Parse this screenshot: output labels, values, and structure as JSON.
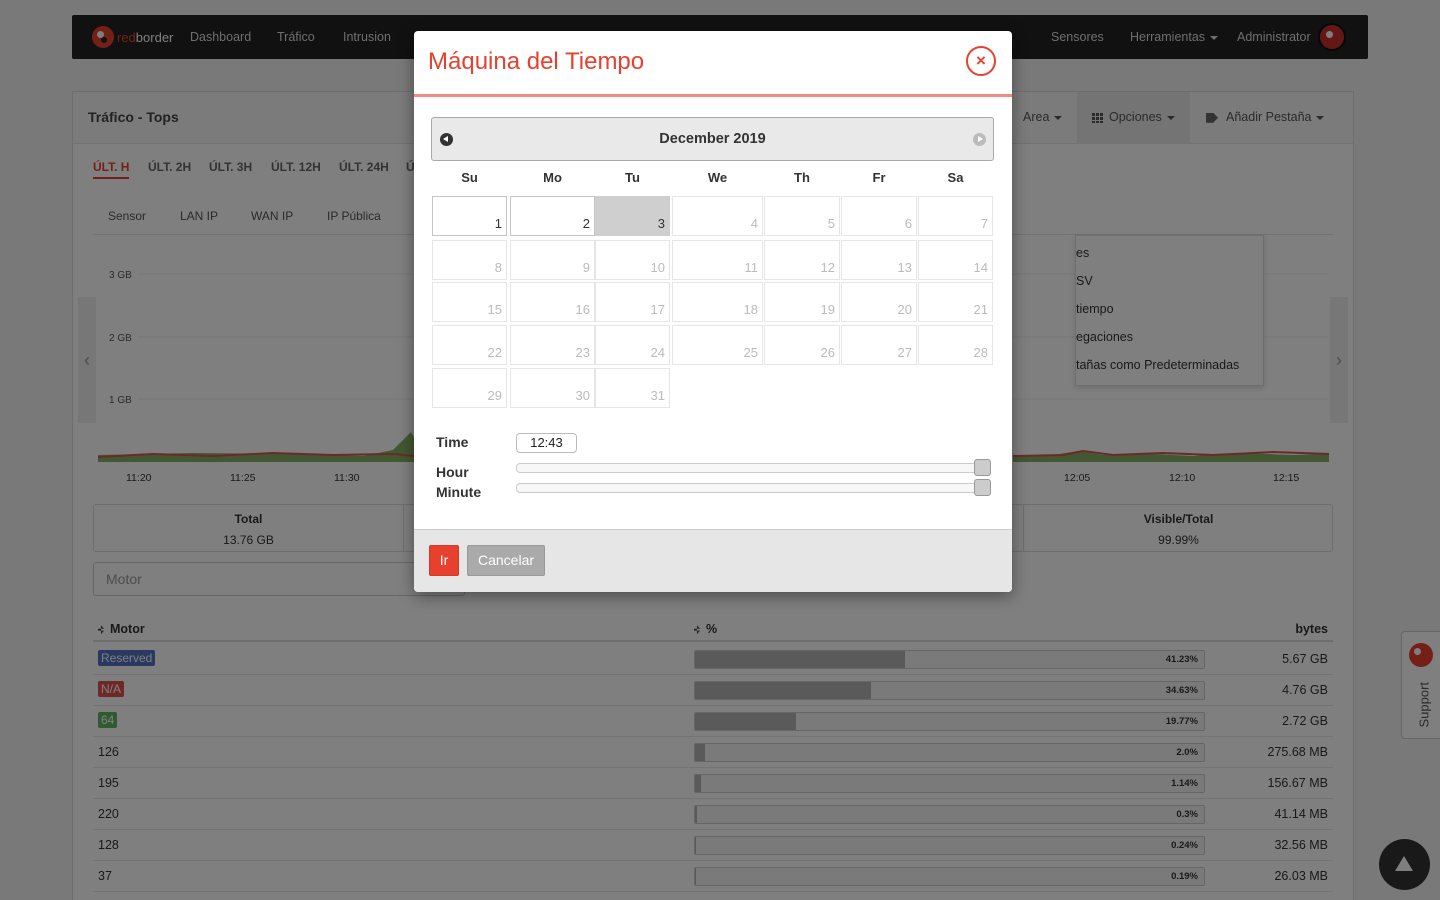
{
  "navbar": {
    "brand_red": "red",
    "brand_white": "border",
    "items": [
      "Dashboard",
      "Tráfico",
      "Intrusion"
    ],
    "right_items": [
      "Sensores",
      "Herramientas",
      "Administrator"
    ]
  },
  "panel": {
    "title": "Tráfico - Tops",
    "header_buttons": {
      "area": "Area",
      "options": "Opciones",
      "add_tab": "Añadir Pestaña"
    },
    "time_tabs": [
      "ÚLT. H",
      "ÚLT. 2H",
      "ÚLT. 3H",
      "ÚLT. 12H",
      "ÚLT. 24H",
      "Ú"
    ],
    "agg_tabs": [
      "Sensor",
      "LAN IP",
      "WAN IP",
      "IP Pública"
    ],
    "dropdown_items": [
      "es",
      "SV",
      "tiempo",
      "egaciones",
      "tañas como Predeterminadas"
    ],
    "summary": {
      "total_label": "Total",
      "total_value": "13.76 GB",
      "visible_label": "Visible/Total",
      "visible_value": "99.99%"
    },
    "motor_placeholder": "Motor",
    "table_headers": {
      "motor": "Motor",
      "percent": "%",
      "bytes": "bytes"
    },
    "rows": [
      {
        "name": "Reserved",
        "badge": "#5473c4",
        "pct": "41.23%",
        "fill": 41.23,
        "bytes": "5.67 GB"
      },
      {
        "name": "N/A",
        "badge": "#d9534f",
        "pct": "34.63%",
        "fill": 34.63,
        "bytes": "4.76 GB"
      },
      {
        "name": "64",
        "badge": "#5cb85c",
        "pct": "19.77%",
        "fill": 19.77,
        "bytes": "2.72 GB"
      },
      {
        "name": "126",
        "badge": "",
        "pct": "2.0%",
        "fill": 2.0,
        "bytes": "275.68 MB"
      },
      {
        "name": "195",
        "badge": "",
        "pct": "1.14%",
        "fill": 1.14,
        "bytes": "156.67 MB"
      },
      {
        "name": "220",
        "badge": "",
        "pct": "0.3%",
        "fill": 0.3,
        "bytes": "41.14 MB"
      },
      {
        "name": "128",
        "badge": "",
        "pct": "0.24%",
        "fill": 0.24,
        "bytes": "32.56 MB"
      },
      {
        "name": "37",
        "badge": "",
        "pct": "0.19%",
        "fill": 0.19,
        "bytes": "26.03 MB"
      }
    ]
  },
  "chart_data": {
    "type": "area",
    "y_ticks": [
      "3 GB",
      "2 GB",
      "1 GB"
    ],
    "x_ticks": [
      "11:20",
      "11:25",
      "11:30",
      "12:05",
      "12:10",
      "12:15"
    ]
  },
  "support_label": "Support",
  "modal": {
    "title": "Máquina del Tiempo",
    "close_glyph": "×",
    "month_label": "December 2019",
    "weekdays": [
      "Su",
      "Mo",
      "Tu",
      "We",
      "Th",
      "Fr",
      "Sa"
    ],
    "days": [
      "1",
      "2",
      "3",
      "4",
      "5",
      "6",
      "7",
      "8",
      "9",
      "10",
      "11",
      "12",
      "13",
      "14",
      "15",
      "16",
      "17",
      "18",
      "19",
      "20",
      "21",
      "22",
      "23",
      "24",
      "25",
      "26",
      "27",
      "28",
      "29",
      "30",
      "31"
    ],
    "selected_day": "3",
    "time_label": "Time",
    "time_value": "12:43",
    "hour_label": "Hour",
    "minute_label": "Minute",
    "hour_level": 1.0,
    "minute_level": 1.0,
    "go_label": "Ir",
    "cancel_label": "Cancelar"
  },
  "colors": {
    "accent": "#e8402f",
    "overlay": "rgba(0,0,0,0.5)"
  }
}
